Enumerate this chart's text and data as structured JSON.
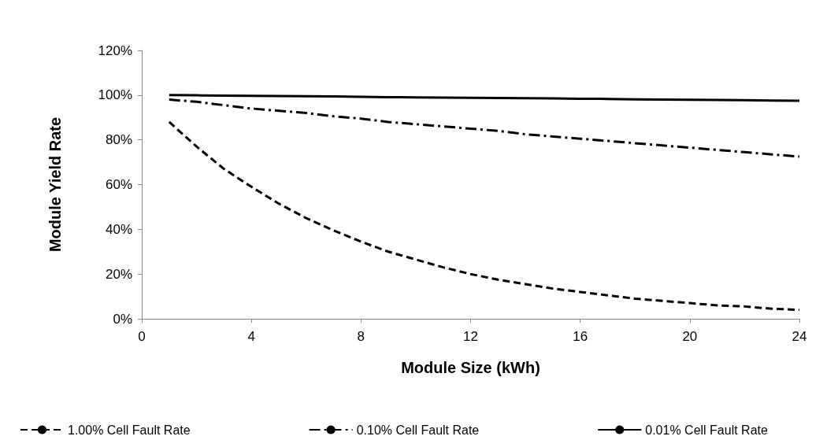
{
  "chart_data": {
    "type": "line",
    "xlabel": "Module Size (kWh)",
    "ylabel": "Module Yield Rate",
    "x": [
      1,
      2,
      3,
      4,
      5,
      6,
      7,
      8,
      9,
      10,
      11,
      12,
      13,
      14,
      15,
      16,
      17,
      18,
      19,
      20,
      21,
      22,
      23,
      24
    ],
    "series": [
      {
        "name": "1.00% Cell Fault Rate",
        "color": "#000000",
        "line_style": "dashed",
        "values": [
          88,
          77,
          67,
          59,
          51.5,
          45,
          39.5,
          34.5,
          30,
          26.5,
          23,
          20,
          17.5,
          15.5,
          13.5,
          12,
          10.5,
          9,
          8,
          7,
          6,
          5.5,
          4.5,
          4
        ]
      },
      {
        "name": "0.10% Cell Fault Rate",
        "color": "#000000",
        "line_style": "dashdot",
        "values": [
          98,
          97,
          95.5,
          94,
          93,
          92,
          90.5,
          89.5,
          88,
          87,
          86,
          85,
          84,
          82.5,
          81.5,
          80.5,
          79.5,
          78.5,
          77.5,
          76.5,
          75.5,
          74.5,
          73.5,
          72.5
        ]
      },
      {
        "name": "0.01% Cell Fault Rate",
        "color": "#000000",
        "line_style": "solid",
        "values": [
          100,
          99.9,
          99.8,
          99.7,
          99.6,
          99.5,
          99.4,
          99.2,
          99.1,
          99,
          98.9,
          98.8,
          98.7,
          98.6,
          98.5,
          98.4,
          98.3,
          98.1,
          98,
          97.9,
          97.8,
          97.7,
          97.6,
          97.5
        ]
      }
    ],
    "xlim": [
      0,
      24
    ],
    "xticks": [
      0,
      4,
      8,
      12,
      16,
      20,
      24
    ],
    "ylim": [
      0,
      120
    ],
    "yticks": [
      {
        "value": 0,
        "label": "0%"
      },
      {
        "value": 20,
        "label": "20%"
      },
      {
        "value": 40,
        "label": "40%"
      },
      {
        "value": 60,
        "label": "60%"
      },
      {
        "value": 80,
        "label": "80%"
      },
      {
        "value": 100,
        "label": "100%"
      },
      {
        "value": 120,
        "label": "120%"
      }
    ],
    "grid": false,
    "legend": "bottom",
    "marker": "none"
  }
}
